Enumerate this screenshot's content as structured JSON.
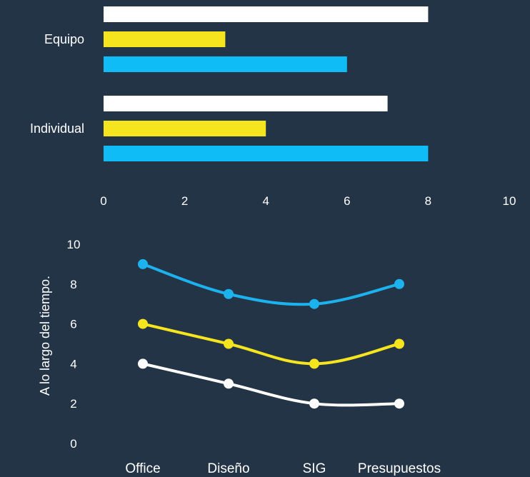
{
  "chart_data": [
    {
      "type": "bar",
      "orientation": "horizontal",
      "categories": [
        "Equipo",
        "Individual"
      ],
      "series": [
        {
          "values": [
            8,
            7
          ],
          "color": "#ffffff"
        },
        {
          "values": [
            3,
            4
          ],
          "color": "#f5e51f"
        },
        {
          "values": [
            6,
            8
          ],
          "color": "#0fbcf5"
        }
      ],
      "xlim": [
        0,
        10
      ],
      "xticks": [
        "0",
        "2",
        "4",
        "6",
        "8",
        "10"
      ],
      "grid": false
    },
    {
      "type": "line",
      "categories": [
        "Office",
        "Diseño",
        "SIG",
        "Presupuestos"
      ],
      "series": [
        {
          "values": [
            9,
            7.5,
            7,
            8
          ],
          "color": "#1cb2ee"
        },
        {
          "values": [
            6,
            5,
            4,
            5
          ],
          "color": "#f5e51f"
        },
        {
          "values": [
            4,
            3,
            2,
            2
          ],
          "color": "#ffffff"
        }
      ],
      "ylabel": "A lo largo del tiempo.",
      "ylim": [
        0,
        10
      ],
      "yticks": [
        "0",
        "2",
        "4",
        "6",
        "8",
        "10"
      ],
      "grid": false
    }
  ]
}
